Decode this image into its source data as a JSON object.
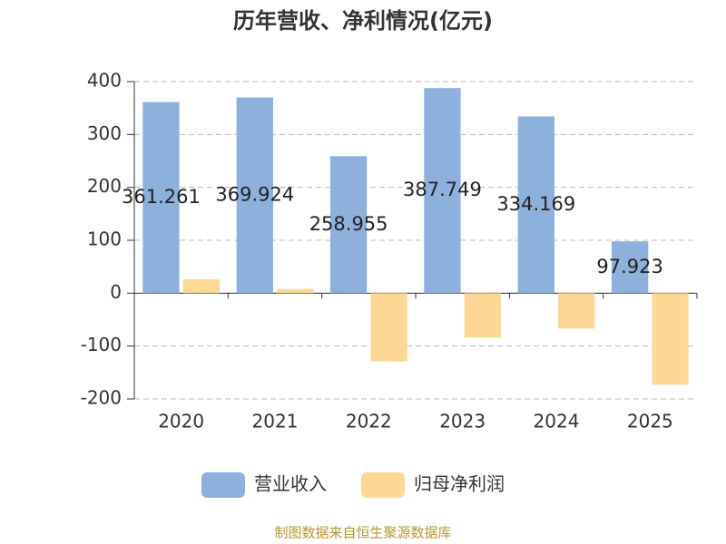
{
  "chart_data": {
    "type": "bar",
    "title": "历年营收、净利情况(亿元)",
    "categories": [
      "2020",
      "2021",
      "2022",
      "2023",
      "2024",
      "2025"
    ],
    "series": [
      {
        "name": "营业收入",
        "color": "#8eb0dc",
        "values": [
          361.261,
          369.924,
          258.955,
          387.749,
          334.169,
          97.923
        ],
        "data_labels": true
      },
      {
        "name": "归母净利润",
        "color": "#fdd794",
        "values": [
          26,
          8,
          -129,
          -84,
          -67,
          -173
        ]
      }
    ],
    "ylim": [
      -200,
      400
    ],
    "yticks": [
      -200,
      -100,
      0,
      100,
      200,
      300,
      400
    ],
    "grid": true,
    "legend": "bottom",
    "source": "制图数据来自恒生聚源数据库"
  }
}
